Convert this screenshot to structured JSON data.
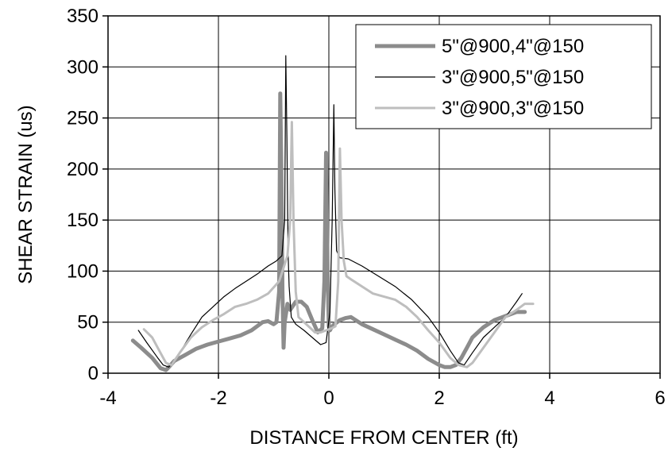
{
  "chart_data": {
    "type": "line",
    "title": "",
    "xlabel": "DISTANCE FROM CENTER (ft)",
    "ylabel": "SHEAR STRAIN (us)",
    "xlim": [
      -4,
      6
    ],
    "ylim": [
      0,
      350
    ],
    "xticks": [
      -4,
      -2,
      0,
      2,
      4,
      6
    ],
    "yticks": [
      0,
      50,
      100,
      150,
      200,
      250,
      300,
      350
    ],
    "grid": true,
    "legend_position": "top-right",
    "series": [
      {
        "name": "5\"@900,4\"@150",
        "color": "#8c8c8c",
        "x": [
          -3.55,
          -3.4,
          -3.2,
          -3.05,
          -2.95,
          -2.9,
          -2.8,
          -2.6,
          -2.4,
          -2.2,
          -2.0,
          -1.8,
          -1.6,
          -1.4,
          -1.2,
          -1.1,
          -1.0,
          -0.95,
          -0.9,
          -0.88,
          -0.86,
          -0.84,
          -0.82,
          -0.8,
          -0.75,
          -0.7,
          -0.6,
          -0.5,
          -0.4,
          -0.3,
          -0.2,
          -0.12,
          -0.08,
          -0.05,
          -0.02,
          0.0,
          0.02,
          0.05,
          0.1,
          0.2,
          0.3,
          0.4,
          0.6,
          0.8,
          1.0,
          1.2,
          1.4,
          1.6,
          1.8,
          2.0,
          2.1,
          2.2,
          2.3,
          2.4,
          2.5,
          2.6,
          2.8,
          3.0,
          3.2,
          3.4,
          3.55
        ],
        "y": [
          32,
          25,
          15,
          5,
          3,
          6,
          12,
          18,
          24,
          28,
          31,
          34,
          37,
          42,
          50,
          51,
          48,
          50,
          80,
          274,
          200,
          80,
          25,
          50,
          68,
          62,
          70,
          70,
          65,
          52,
          40,
          44,
          90,
          216,
          90,
          46,
          42,
          45,
          48,
          52,
          54,
          55,
          48,
          43,
          38,
          33,
          28,
          22,
          14,
          8,
          6,
          6,
          8,
          15,
          25,
          35,
          45,
          52,
          56,
          60,
          60
        ]
      },
      {
        "name": "3\"@900,5\"@150",
        "color": "#000000",
        "x": [
          -3.45,
          -3.3,
          -3.1,
          -3.0,
          -2.9,
          -2.7,
          -2.5,
          -2.3,
          -2.1,
          -1.9,
          -1.7,
          -1.5,
          -1.3,
          -1.1,
          -0.95,
          -0.85,
          -0.8,
          -0.78,
          -0.76,
          -0.74,
          -0.72,
          -0.68,
          -0.6,
          -0.45,
          -0.3,
          -0.15,
          -0.05,
          0.02,
          0.06,
          0.09,
          0.11,
          0.14,
          0.2,
          0.35,
          0.6,
          0.9,
          1.2,
          1.5,
          1.8,
          2.0,
          2.2,
          2.35,
          2.45,
          2.6,
          2.8,
          3.0,
          3.2,
          3.4,
          3.5
        ],
        "y": [
          42,
          30,
          15,
          8,
          6,
          20,
          38,
          55,
          65,
          75,
          83,
          90,
          97,
          105,
          110,
          115,
          150,
          311,
          230,
          120,
          85,
          55,
          48,
          42,
          35,
          28,
          30,
          60,
          150,
          263,
          180,
          120,
          113,
          112,
          105,
          95,
          85,
          72,
          55,
          40,
          22,
          10,
          8,
          20,
          35,
          45,
          55,
          70,
          78
        ]
      },
      {
        "name": "3\"@900,3\"@150",
        "color": "#bebebe",
        "x": [
          -3.35,
          -3.2,
          -3.05,
          -2.95,
          -2.85,
          -2.7,
          -2.5,
          -2.3,
          -2.1,
          -1.9,
          -1.7,
          -1.5,
          -1.3,
          -1.1,
          -0.9,
          -0.75,
          -0.7,
          -0.67,
          -0.64,
          -0.6,
          -0.55,
          -0.45,
          -0.35,
          -0.25,
          -0.15,
          -0.05,
          0.05,
          0.12,
          0.17,
          0.2,
          0.23,
          0.27,
          0.32,
          0.4,
          0.6,
          0.8,
          1.0,
          1.2,
          1.4,
          1.6,
          1.8,
          2.0,
          2.2,
          2.35,
          2.5,
          2.6,
          2.8,
          3.0,
          3.2,
          3.4,
          3.55,
          3.7
        ],
        "y": [
          43,
          35,
          20,
          10,
          8,
          20,
          35,
          45,
          52,
          58,
          65,
          68,
          72,
          78,
          90,
          115,
          150,
          246,
          150,
          80,
          55,
          50,
          45,
          40,
          40,
          42,
          44,
          46,
          90,
          220,
          150,
          110,
          95,
          92,
          85,
          78,
          75,
          72,
          65,
          55,
          42,
          30,
          15,
          8,
          6,
          10,
          25,
          40,
          55,
          62,
          68,
          68
        ]
      }
    ]
  }
}
